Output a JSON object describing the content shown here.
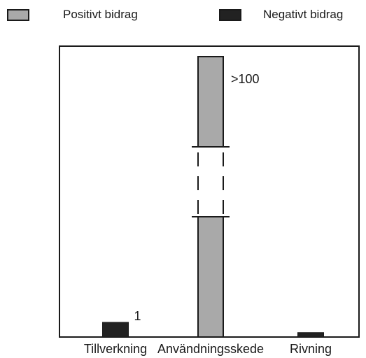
{
  "legend": [
    {
      "name": "Positivt bidrag",
      "color": "#a9a9a9"
    },
    {
      "name": "Negativt bidrag",
      "color": "#222222"
    }
  ],
  "chart_data": {
    "type": "bar",
    "categories": [
      "Tillverkning",
      "Användningsskede",
      "Rivning"
    ],
    "series": [
      {
        "name": "Positivt bidrag",
        "values": [
          null,
          100,
          null
        ]
      },
      {
        "name": "Negativt bidrag",
        "values": [
          1,
          null,
          0.3
        ]
      }
    ],
    "data_labels": [
      "1",
      ">100",
      ""
    ],
    "axis_break": true,
    "title": "",
    "xlabel": "",
    "ylabel": "",
    "legend_position": "top"
  }
}
